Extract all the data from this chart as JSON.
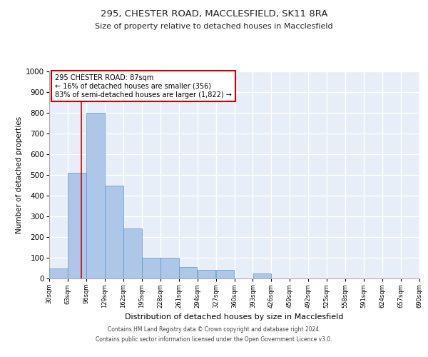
{
  "title1": "295, CHESTER ROAD, MACCLESFIELD, SK11 8RA",
  "title2": "Size of property relative to detached houses in Macclesfield",
  "xlabel": "Distribution of detached houses by size in Macclesfield",
  "ylabel": "Number of detached properties",
  "bin_edges": [
    30,
    63,
    96,
    129,
    162,
    195,
    228,
    261,
    294,
    327,
    360,
    393,
    426,
    459,
    492,
    525,
    558,
    591,
    624,
    657,
    690
  ],
  "bar_heights": [
    50,
    510,
    800,
    450,
    240,
    100,
    100,
    55,
    40,
    40,
    0,
    25,
    0,
    0,
    0,
    0,
    0,
    0,
    0,
    0
  ],
  "bar_color": "#aec6e8",
  "bar_edge_color": "#5a96c8",
  "bg_color": "#e8eef7",
  "grid_color": "#ffffff",
  "property_line_x": 87,
  "property_line_color": "#cc0000",
  "annotation_text": "295 CHESTER ROAD: 87sqm\n← 16% of detached houses are smaller (356)\n83% of semi-detached houses are larger (1,822) →",
  "annotation_box_color": "#ffffff",
  "annotation_box_edge": "#cc0000",
  "ylim": [
    0,
    1000
  ],
  "yticks": [
    0,
    100,
    200,
    300,
    400,
    500,
    600,
    700,
    800,
    900,
    1000
  ],
  "footer_line1": "Contains HM Land Registry data © Crown copyright and database right 2024.",
  "footer_line2": "Contains public sector information licensed under the Open Government Licence v3.0."
}
